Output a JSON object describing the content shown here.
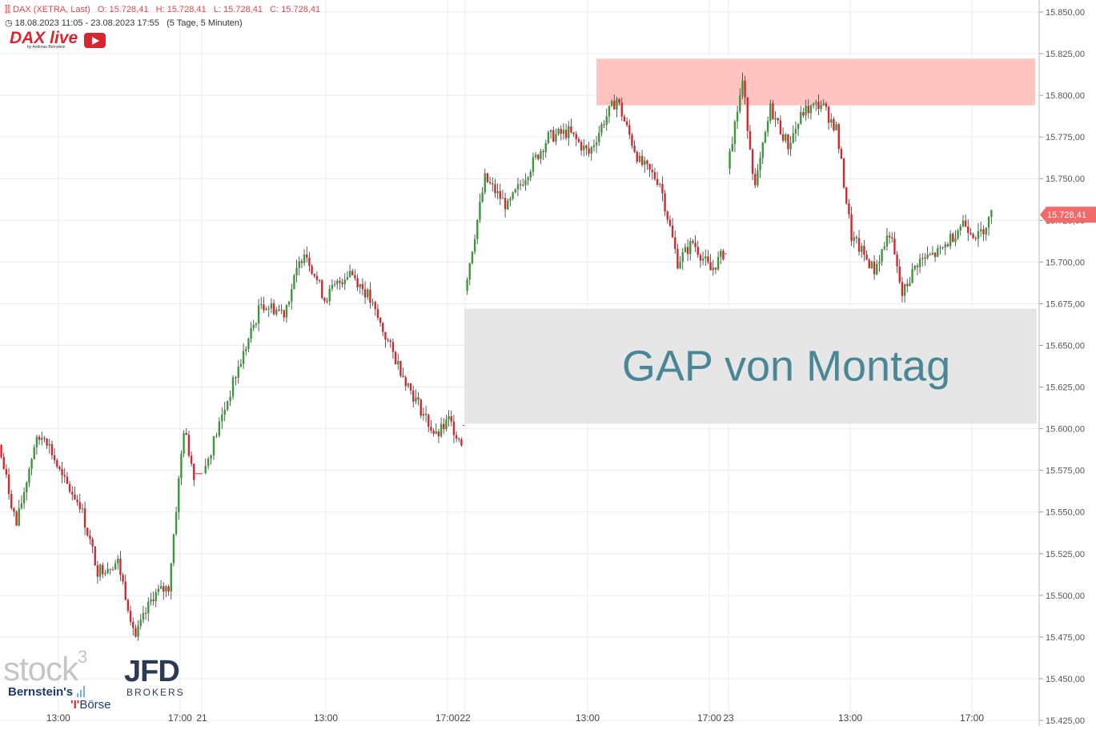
{
  "header": {
    "instrument": "DAX (XETRA, Last)",
    "open": "O: 15.728,41",
    "high": "H: 15.728,41",
    "low": "L: 15.728,41",
    "close": "C: 15.728,41",
    "period": "18.08.2023 11:05 - 23.08.2023 17:55   (5 Tage, 5 Minuten)"
  },
  "logos": {
    "dax_live": "DAX live",
    "dax_live_sub": "by Andreas Bernstein",
    "stock3": "stock",
    "stock3_sup": "3",
    "jfd": "JFD",
    "jfd_sub": "BROKERS",
    "bernstein": "Bernstein's",
    "boerse": "Börse"
  },
  "colors": {
    "up": "#3a9a3a",
    "down": "#d8262e",
    "resistance_zone": "#ffc3c0",
    "gap_zone": "#e6e6e6",
    "gap_text": "#4a8796",
    "price_tag": "#f06a6a",
    "grid": "#ececec"
  },
  "chart_data": {
    "type": "candlestick",
    "title": "DAX (XETRA, Last)",
    "timeframe": "5 Minuten",
    "date_range": "18.08.2023 11:05 - 23.08.2023 17:55",
    "y_axis_ticks": [
      "15.425,00",
      "15.450,00",
      "15.475,00",
      "15.500,00",
      "15.525,00",
      "15.550,00",
      "15.575,00",
      "15.600,00",
      "15.625,00",
      "15.650,00",
      "15.675,00",
      "15.700,00",
      "15.725,00",
      "15.750,00",
      "15.775,00",
      "15.800,00",
      "15.825,00",
      "15.850,00"
    ],
    "ylim": [
      15425,
      15850
    ],
    "x_axis_ticks": [
      "13:00",
      "17:00",
      "21",
      "13:00",
      "17:00",
      "22",
      "13:00",
      "17:00",
      "23",
      "13:00",
      "17:00"
    ],
    "last_price": 15728.41,
    "last_price_label": "15.728,41",
    "annotations": [
      {
        "type": "zone",
        "label": "",
        "y_from": 15794,
        "y_to": 15822
      },
      {
        "type": "zone",
        "label": "GAP von Montag",
        "y_from": 15603,
        "y_to": 15672
      }
    ],
    "close_path": [
      {
        "date": "18.08 11:05",
        "value": 15590
      },
      {
        "date": "18.08 11:40",
        "value": 15542
      },
      {
        "date": "18.08 12:15",
        "value": 15590
      },
      {
        "date": "18.08 12:35",
        "value": 15597
      },
      {
        "date": "18.08 13:10",
        "value": 15570
      },
      {
        "date": "18.08 13:45",
        "value": 15555
      },
      {
        "date": "18.08 14:20",
        "value": 15515
      },
      {
        "date": "18.08 15:00",
        "value": 15520
      },
      {
        "date": "18.08 15:35",
        "value": 15475
      },
      {
        "date": "18.08 16:10",
        "value": 15500
      },
      {
        "date": "18.08 16:40",
        "value": 15505
      },
      {
        "date": "18.08 17:10",
        "value": 15600
      },
      {
        "date": "18.08 17:30",
        "value": 15573
      },
      {
        "date": "21.08 09:00",
        "value": 15573
      },
      {
        "date": "21.08 10:05",
        "value": 15632
      },
      {
        "date": "21.08 10:55",
        "value": 15675
      },
      {
        "date": "21.08 11:40",
        "value": 15670
      },
      {
        "date": "21.08 12:20",
        "value": 15708
      },
      {
        "date": "21.08 13:00",
        "value": 15678
      },
      {
        "date": "21.08 13:50",
        "value": 15695
      },
      {
        "date": "21.08 14:25",
        "value": 15680
      },
      {
        "date": "21.08 15:15",
        "value": 15645
      },
      {
        "date": "21.08 15:55",
        "value": 15620
      },
      {
        "date": "21.08 16:40",
        "value": 15595
      },
      {
        "date": "21.08 17:05",
        "value": 15605
      },
      {
        "date": "21.08 17:30",
        "value": 15592
      },
      {
        "date": "22.08 09:00",
        "value": 15684
      },
      {
        "date": "22.08 09:40",
        "value": 15750
      },
      {
        "date": "22.08 10:25",
        "value": 15733
      },
      {
        "date": "22.08 11:00",
        "value": 15752
      },
      {
        "date": "22.08 11:45",
        "value": 15775
      },
      {
        "date": "22.08 12:25",
        "value": 15778
      },
      {
        "date": "22.08 13:05",
        "value": 15765
      },
      {
        "date": "22.08 13:35",
        "value": 15785
      },
      {
        "date": "22.08 14:00",
        "value": 15798
      },
      {
        "date": "22.08 14:20",
        "value": 15780
      },
      {
        "date": "22.08 14:45",
        "value": 15760
      },
      {
        "date": "22.08 15:25",
        "value": 15748
      },
      {
        "date": "22.08 16:00",
        "value": 15700
      },
      {
        "date": "22.08 16:30",
        "value": 15712
      },
      {
        "date": "22.08 17:05",
        "value": 15695
      },
      {
        "date": "22.08 17:30",
        "value": 15705
      },
      {
        "date": "23.08 09:00",
        "value": 15758
      },
      {
        "date": "23.08 09:30",
        "value": 15808
      },
      {
        "date": "23.08 09:55",
        "value": 15744
      },
      {
        "date": "23.08 10:25",
        "value": 15792
      },
      {
        "date": "23.08 11:00",
        "value": 15770
      },
      {
        "date": "23.08 11:30",
        "value": 15790
      },
      {
        "date": "23.08 12:05",
        "value": 15795
      },
      {
        "date": "23.08 12:35",
        "value": 15780
      },
      {
        "date": "23.08 13:05",
        "value": 15715
      },
      {
        "date": "23.08 13:50",
        "value": 15695
      },
      {
        "date": "23.08 14:20",
        "value": 15718
      },
      {
        "date": "23.08 14:45",
        "value": 15680
      },
      {
        "date": "23.08 15:15",
        "value": 15700
      },
      {
        "date": "23.08 16:00",
        "value": 15706
      },
      {
        "date": "23.08 16:45",
        "value": 15724
      },
      {
        "date": "23.08 17:15",
        "value": 15715
      },
      {
        "date": "23.08 17:55",
        "value": 15728.41
      }
    ]
  }
}
